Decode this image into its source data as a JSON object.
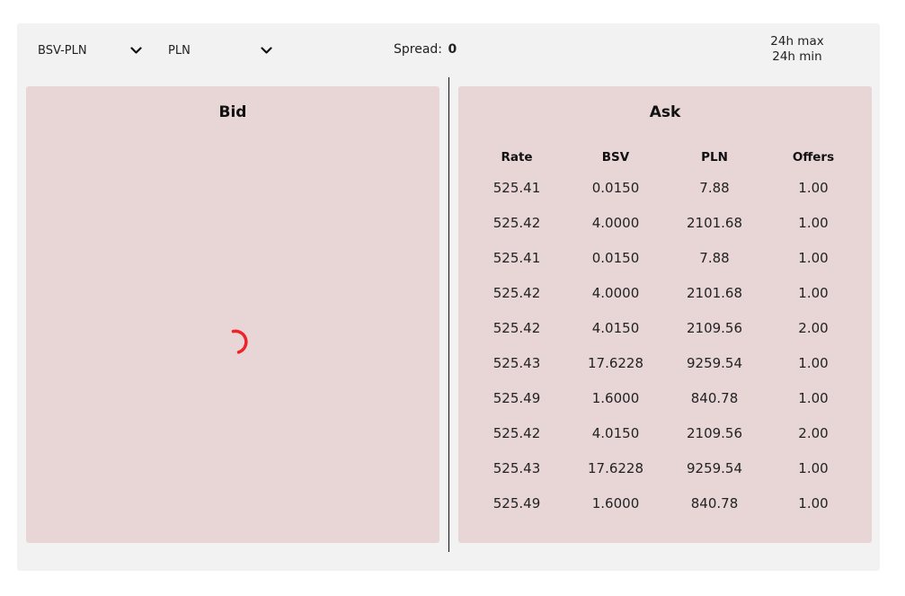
{
  "toolbar": {
    "market_select": {
      "value": "BSV-PLN",
      "icon": "chevron-down-icon"
    },
    "currency_select": {
      "value": "PLN",
      "icon": "chevron-down-icon"
    },
    "spread": {
      "label": "Spread:",
      "value": "0"
    },
    "stats": {
      "max_label": "24h max",
      "min_label": "24h min"
    }
  },
  "bid": {
    "title": "Bid",
    "loading_icon": "loading-spinner-icon",
    "spinner_color": "#ee2229"
  },
  "ask": {
    "title": "Ask",
    "columns": [
      "Rate",
      "BSV",
      "PLN",
      "Offers"
    ],
    "rows": [
      [
        "525.41",
        "0.0150",
        "7.88",
        "1.00"
      ],
      [
        "525.42",
        "4.0000",
        "2101.68",
        "1.00"
      ],
      [
        "525.41",
        "0.0150",
        "7.88",
        "1.00"
      ],
      [
        "525.42",
        "4.0000",
        "2101.68",
        "1.00"
      ],
      [
        "525.42",
        "4.0150",
        "2109.56",
        "2.00"
      ],
      [
        "525.43",
        "17.6228",
        "9259.54",
        "1.00"
      ],
      [
        "525.49",
        "1.6000",
        "840.78",
        "1.00"
      ],
      [
        "525.42",
        "4.0150",
        "2109.56",
        "2.00"
      ],
      [
        "525.43",
        "17.6228",
        "9259.54",
        "1.00"
      ],
      [
        "525.49",
        "1.6000",
        "840.78",
        "1.00"
      ]
    ]
  },
  "colors": {
    "panel_background": "#e8d6d7",
    "frame_background": "#f2f2f2",
    "text": "#111111"
  }
}
